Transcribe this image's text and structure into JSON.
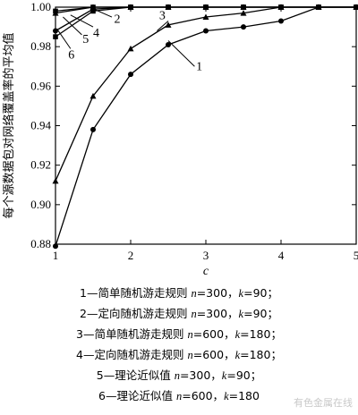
{
  "chart_data": {
    "type": "line",
    "xlabel": "c",
    "ylabel": "每个源数据包对网络覆盖率的平均值",
    "xlim": [
      1,
      5
    ],
    "ylim": [
      0.88,
      1.0
    ],
    "xticks": [
      "1",
      "2",
      "3",
      "4",
      "5"
    ],
    "yticks": [
      "0.88",
      "0.90",
      "0.92",
      "0.94",
      "0.96",
      "0.98",
      "1.00"
    ],
    "grid": false,
    "series": [
      {
        "name": "1",
        "x": [
          1,
          1.5,
          2,
          2.5,
          3,
          3.5,
          4,
          4.5,
          5
        ],
        "y": [
          0.879,
          0.938,
          0.966,
          0.981,
          0.988,
          0.99,
          0.993,
          1.0,
          1.0
        ]
      },
      {
        "name": "2",
        "x": [
          1,
          1.5,
          2,
          2.5,
          3,
          3.5,
          4,
          4.5,
          5
        ],
        "y": [
          0.998,
          1.0,
          1.0,
          1.0,
          1.0,
          1.0,
          1.0,
          1.0,
          1.0
        ]
      },
      {
        "name": "3",
        "x": [
          1,
          1.5,
          2,
          2.5,
          3,
          3.5,
          4,
          4.5,
          5
        ],
        "y": [
          0.912,
          0.955,
          0.979,
          0.991,
          0.995,
          0.997,
          1.0,
          1.0,
          1.0
        ]
      },
      {
        "name": "4",
        "x": [
          1,
          1.5,
          2,
          2.5,
          3,
          3.5,
          4,
          4.5,
          5
        ],
        "y": [
          0.997,
          1.0,
          1.0,
          1.0,
          1.0,
          1.0,
          1.0,
          1.0,
          1.0
        ]
      },
      {
        "name": "5",
        "x": [
          1,
          1.5,
          2,
          2.5,
          3,
          3.5,
          4,
          4.5,
          5
        ],
        "y": [
          0.988,
          0.999,
          1.0,
          1.0,
          1.0,
          1.0,
          1.0,
          1.0,
          1.0
        ]
      },
      {
        "name": "6",
        "x": [
          1,
          1.5,
          2,
          2.5,
          3,
          3.5,
          4,
          4.5,
          5
        ],
        "y": [
          0.985,
          0.998,
          1.0,
          1.0,
          1.0,
          1.0,
          1.0,
          1.0,
          1.0
        ]
      }
    ],
    "annotations": [
      "1",
      "2",
      "3",
      "4",
      "5",
      "6"
    ]
  },
  "legend": [
    {
      "text": "1—简单随机游走规则 ",
      "n": "n",
      "nval": "=300，",
      "k": "k",
      "kval": "=90；"
    },
    {
      "text": "2—定向随机游走规则 ",
      "n": "n",
      "nval": "=300，",
      "k": "k",
      "kval": "=90；"
    },
    {
      "text": "3—简单随机游走规则 ",
      "n": "n",
      "nval": "=600，",
      "k": "k",
      "kval": "=180；"
    },
    {
      "text": "4—定向随机游走规则 ",
      "n": "n",
      "nval": "=600，",
      "k": "k",
      "kval": "=180；"
    },
    {
      "text": "5—理论近似值 ",
      "n": "n",
      "nval": "=300，",
      "k": "k",
      "kval": "=90；"
    },
    {
      "text": "6—理论近似值 ",
      "n": "n",
      "nval": "=600，",
      "k": "k",
      "kval": "=180"
    }
  ],
  "watermark": "有色金属在线"
}
